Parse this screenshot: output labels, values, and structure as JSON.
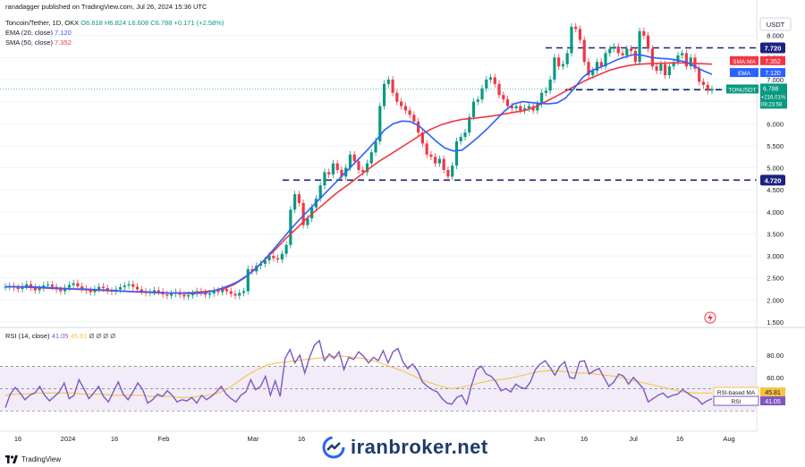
{
  "header": {
    "published": "ranadagger published on TradingView.com, Jul 26, 2024 15:36 UTC",
    "symbol": "Toncoin/Tether, 1D, OKX",
    "ohlc": "O6.618  H6.824  L6.608  C6.788  +0.171 (+2.58%)",
    "ema": "EMA (20, close)",
    "ema_value": "7.120",
    "sma": "SMA (50, close)",
    "sma_value": "7.352",
    "rsi": "RSI (14, close)",
    "rsi_value": "41.05",
    "rsi_ma_value": "45.81",
    "rsi_extra": "Ø Ø Ø Ø"
  },
  "footer": {
    "logo_text": "TradingView"
  },
  "watermark": {
    "text": "iranbroker.net"
  },
  "colors": {
    "up": "#089981",
    "down": "#f23645",
    "ema": "#2962ff",
    "sma": "#f23645",
    "rsi": "#7e57c2",
    "rsi_ma": "#f6c343",
    "level": "#1a237e",
    "band": "#ede7f6"
  },
  "chart_data": [
    {
      "type": "line",
      "title": "Toncoin/Tether, 1D, OKX",
      "currency_label": "USDT",
      "y_ticks": [
        "8.000",
        "7.500",
        "7.000",
        "6.500",
        "6.000",
        "5.500",
        "5.000",
        "4.500",
        "4.000",
        "3.500",
        "3.000",
        "2.500",
        "2.000",
        "1.500"
      ],
      "ylim": [
        1.5,
        8.4
      ],
      "x_tick_labels": [
        "16",
        "2024",
        "16",
        "Feb",
        "Mar",
        "16",
        "Jun",
        "16",
        "Jul",
        "16",
        "Aug"
      ],
      "horizontal_levels": [
        {
          "label": "7.720",
          "value": 7.72
        },
        {
          "label": "6.770",
          "value": 6.77
        },
        {
          "label": "4.720",
          "value": 4.72
        }
      ],
      "price_tag": {
        "symbol": "TONUSDT",
        "value": "6.788",
        "change": "+216.01%",
        "countdown": "08:23:58"
      },
      "sma_tag": {
        "label": "SMA:MA",
        "value": "7.352"
      },
      "ema_tag": {
        "label": "EMA",
        "value": "7.120"
      },
      "series": [
        {
          "name": "TONUSDT",
          "values": [
            2.3,
            2.32,
            2.28,
            2.25,
            2.31,
            2.36,
            2.29,
            2.22,
            2.27,
            2.33,
            2.35,
            2.3,
            2.24,
            2.2,
            2.28,
            2.34,
            2.38,
            2.31,
            2.26,
            2.22,
            2.18,
            2.25,
            2.3,
            2.27,
            2.21,
            2.19,
            2.24,
            2.29,
            2.33,
            2.36,
            2.3,
            2.24,
            2.2,
            2.16,
            2.18,
            2.22,
            2.19,
            2.13,
            2.1,
            2.14,
            2.18,
            2.12,
            2.08,
            2.11,
            2.15,
            2.2,
            2.17,
            2.12,
            2.15,
            2.21,
            2.18,
            2.25,
            2.2,
            2.14,
            2.1,
            2.16,
            2.2,
            2.7,
            2.65,
            2.78,
            2.82,
            2.9,
            3.0,
            2.95,
            2.92,
            3.05,
            3.25,
            4.05,
            4.4,
            4.2,
            3.7,
            3.85,
            4.1,
            4.3,
            4.6,
            4.9,
            4.85,
            5.1,
            4.95,
            4.8,
            5.0,
            5.3,
            5.15,
            4.95,
            4.9,
            5.1,
            5.35,
            5.6,
            6.4,
            6.9,
            7.0,
            6.7,
            6.5,
            6.4,
            6.3,
            6.2,
            6.05,
            5.8,
            5.55,
            5.3,
            5.25,
            5.1,
            5.2,
            4.95,
            4.8,
            5.05,
            5.6,
            5.7,
            5.8,
            6.15,
            6.5,
            6.55,
            6.8,
            7.0,
            7.05,
            6.9,
            6.65,
            6.55,
            6.4,
            6.35,
            6.4,
            6.3,
            6.35,
            6.4,
            6.3,
            6.45,
            6.7,
            6.75,
            7.0,
            7.5,
            7.3,
            7.35,
            7.6,
            8.2,
            8.15,
            7.9,
            7.4,
            7.1,
            7.2,
            7.4,
            7.3,
            7.6,
            7.7,
            7.75,
            7.6,
            7.55,
            7.7,
            7.65,
            7.4,
            8.1,
            8.0,
            7.7,
            7.3,
            7.2,
            7.35,
            7.1,
            7.3,
            7.4,
            7.55,
            7.6,
            7.3,
            7.5,
            7.25,
            6.95,
            6.88,
            6.75,
            6.79
          ]
        },
        {
          "name": "EMA (20, close)",
          "values": [
            2.3,
            2.3,
            2.3,
            2.3,
            2.29,
            2.28,
            2.27,
            2.26,
            2.25,
            2.25,
            2.24,
            2.23,
            2.22,
            2.21,
            2.2,
            2.19,
            2.19,
            2.18,
            2.17,
            2.16,
            2.16,
            2.15,
            2.15,
            2.16,
            2.2,
            2.26,
            2.33,
            2.42,
            2.55,
            2.7,
            2.9,
            3.12,
            3.35,
            3.58,
            3.8,
            4.0,
            4.2,
            4.4,
            4.6,
            4.8,
            5.0,
            5.2,
            5.4,
            5.62,
            5.86,
            6.0,
            6.06,
            6.05,
            5.95,
            5.78,
            5.6,
            5.45,
            5.38,
            5.4,
            5.55,
            5.72,
            5.9,
            6.1,
            6.3,
            6.45,
            6.5,
            6.48,
            6.46,
            6.45,
            6.47,
            6.58,
            6.8,
            7.05,
            7.2,
            7.28,
            7.36,
            7.45,
            7.52,
            7.57,
            7.55,
            7.5,
            7.48,
            7.47,
            7.44,
            7.4,
            7.3,
            7.2,
            7.12
          ]
        },
        {
          "name": "SMA (50, close)",
          "values": [
            2.3,
            2.3,
            2.29,
            2.28,
            2.27,
            2.26,
            2.25,
            2.24,
            2.23,
            2.22,
            2.21,
            2.2,
            2.19,
            2.18,
            2.17,
            2.16,
            2.16,
            2.16,
            2.17,
            2.19,
            2.21,
            2.25,
            2.35,
            2.5,
            2.7,
            2.92,
            3.15,
            3.4,
            3.62,
            3.85,
            4.05,
            4.25,
            4.45,
            4.62,
            4.8,
            4.98,
            5.15,
            5.3,
            5.45,
            5.6,
            5.75,
            5.88,
            5.98,
            6.05,
            6.1,
            6.12,
            6.15,
            6.18,
            6.22,
            6.26,
            6.3,
            6.38,
            6.5,
            6.62,
            6.75,
            6.88,
            7.0,
            7.1,
            7.2,
            7.27,
            7.32,
            7.35,
            7.36,
            7.37,
            7.38,
            7.38,
            7.37,
            7.36,
            7.35
          ]
        }
      ]
    },
    {
      "type": "line",
      "title": "RSI (14, close)",
      "y_ticks": [
        "80.00",
        "60.00"
      ],
      "ylim": [
        15,
        100
      ],
      "overbought": 70,
      "oversold": 30,
      "rsi_tag": {
        "label": "RSI",
        "value": "41.05"
      },
      "rsi_ma_tag": {
        "label": "RSI-based MA",
        "value": "45.81"
      },
      "series": [
        {
          "name": "RSI",
          "values": [
            33,
            45,
            51,
            46,
            40,
            44,
            46,
            52,
            44,
            39,
            43,
            47,
            55,
            41,
            44,
            58,
            50,
            41,
            46,
            52,
            43,
            38,
            47,
            56,
            45,
            40,
            47,
            55,
            49,
            37,
            40,
            45,
            43,
            48,
            44,
            38,
            40,
            39,
            42,
            37,
            44,
            40,
            43,
            47,
            52,
            45,
            41,
            38,
            44,
            47,
            58,
            49,
            52,
            61,
            44,
            57,
            43,
            77,
            85,
            73,
            80,
            64,
            78,
            89,
            93,
            75,
            81,
            77,
            83,
            67,
            78,
            76,
            83,
            79,
            73,
            78,
            75,
            84,
            73,
            83,
            86,
            74,
            68,
            72,
            66,
            56,
            52,
            49,
            47,
            41,
            37,
            36,
            42,
            44,
            36,
            53,
            67,
            70,
            63,
            61,
            56,
            48,
            50,
            47,
            54,
            51,
            50,
            56,
            67,
            72,
            75,
            69,
            62,
            70,
            74,
            60,
            59,
            74,
            75,
            63,
            66,
            68,
            60,
            52,
            56,
            63,
            61,
            54,
            60,
            55,
            50,
            38,
            41,
            44,
            46,
            42,
            44,
            45,
            49,
            46,
            43,
            41,
            36,
            39,
            41
          ]
        },
        {
          "name": "RSI-based MA",
          "values": [
            44,
            45,
            45,
            46,
            46,
            46,
            46,
            46,
            45,
            45,
            45,
            44,
            44,
            44,
            44,
            43,
            43,
            43,
            42,
            42,
            43,
            44,
            46,
            50,
            56,
            62,
            67,
            71,
            73,
            74,
            75,
            76,
            77,
            78,
            79,
            79,
            78,
            77,
            75,
            72,
            69,
            66,
            62,
            58,
            55,
            52,
            50,
            51,
            53,
            55,
            57,
            58,
            59,
            61,
            63,
            65,
            66,
            66,
            65,
            64,
            64,
            63,
            62,
            61,
            59,
            57,
            55,
            53,
            51,
            49,
            47,
            46,
            46,
            46
          ]
        }
      ]
    }
  ]
}
